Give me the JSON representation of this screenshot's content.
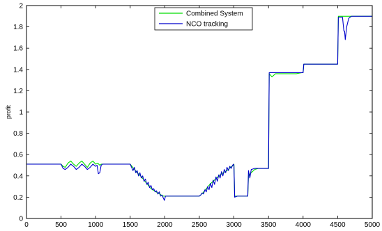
{
  "chart_data": {
    "type": "line",
    "title": "",
    "xlabel": "",
    "ylabel": "profit",
    "xlim": [
      0,
      5000
    ],
    "ylim": [
      0,
      2
    ],
    "grid": false,
    "legend_placement": "top-center",
    "x_ticks": [
      "0",
      "500",
      "1000",
      "1500",
      "2000",
      "2500",
      "3000",
      "3500",
      "4000",
      "4500",
      "5000"
    ],
    "y_ticks": [
      "0",
      "0.2",
      "0.4",
      "0.6",
      "0.8",
      "1",
      "1.2",
      "1.4",
      "1.6",
      "1.8",
      "2"
    ],
    "series": [
      {
        "name": "Combined System",
        "color": "#00dd00",
        "x": [
          0,
          500,
          530,
          560,
          600,
          640,
          680,
          720,
          760,
          800,
          840,
          880,
          920,
          960,
          1000,
          1030,
          1060,
          1080,
          1100,
          1500,
          1550,
          1600,
          1650,
          1700,
          1750,
          1800,
          1850,
          1900,
          1950,
          1980,
          2000,
          2020,
          2500,
          2550,
          2600,
          2650,
          2700,
          2750,
          2800,
          2850,
          2900,
          2950,
          2990,
          3000,
          3010,
          3050,
          3100,
          3150,
          3200,
          3210,
          3250,
          3300,
          3350,
          3400,
          3450,
          3490,
          3500,
          3510,
          3550,
          3600,
          3700,
          3800,
          3900,
          3990,
          4000,
          4010,
          4100,
          4200,
          4300,
          4400,
          4490,
          4500,
          4510,
          4550,
          4590,
          4600,
          4620,
          4650,
          4700,
          5000
        ],
        "y": [
          0.51,
          0.51,
          0.49,
          0.48,
          0.52,
          0.54,
          0.51,
          0.49,
          0.52,
          0.54,
          0.51,
          0.48,
          0.52,
          0.54,
          0.51,
          0.52,
          0.5,
          0.51,
          0.51,
          0.51,
          0.47,
          0.43,
          0.4,
          0.36,
          0.32,
          0.28,
          0.26,
          0.24,
          0.22,
          0.21,
          0.21,
          0.21,
          0.21,
          0.24,
          0.28,
          0.32,
          0.35,
          0.38,
          0.41,
          0.43,
          0.45,
          0.48,
          0.5,
          0.51,
          0.21,
          0.21,
          0.21,
          0.21,
          0.21,
          0.4,
          0.43,
          0.46,
          0.47,
          0.47,
          0.47,
          0.47,
          0.47,
          1.36,
          1.33,
          1.36,
          1.36,
          1.36,
          1.36,
          1.37,
          1.37,
          1.45,
          1.45,
          1.45,
          1.45,
          1.45,
          1.45,
          1.45,
          1.9,
          1.9,
          1.9,
          1.9,
          1.9,
          1.9,
          1.9,
          1.9
        ]
      },
      {
        "name": "NCO tracking",
        "color": "#0000cc",
        "x": [
          0,
          500,
          530,
          560,
          600,
          640,
          680,
          720,
          760,
          800,
          840,
          880,
          920,
          960,
          1000,
          1020,
          1040,
          1060,
          1080,
          1100,
          1500,
          1520,
          1540,
          1560,
          1580,
          1600,
          1620,
          1640,
          1660,
          1680,
          1700,
          1720,
          1740,
          1760,
          1780,
          1800,
          1820,
          1840,
          1860,
          1880,
          1900,
          1920,
          1940,
          1960,
          1980,
          1995,
          2010,
          2020,
          2500,
          2520,
          2540,
          2560,
          2580,
          2600,
          2620,
          2640,
          2660,
          2680,
          2700,
          2720,
          2740,
          2760,
          2780,
          2800,
          2820,
          2840,
          2860,
          2880,
          2900,
          2920,
          2940,
          2960,
          2980,
          2995,
          3000,
          3010,
          3050,
          3100,
          3150,
          3200,
          3210,
          3230,
          3250,
          3300,
          3350,
          3400,
          3450,
          3490,
          3500,
          3510,
          3600,
          3700,
          3800,
          3900,
          3990,
          4000,
          4010,
          4100,
          4200,
          4300,
          4400,
          4490,
          4500,
          4510,
          4540,
          4570,
          4590,
          4600,
          4610,
          4630,
          4660,
          4700,
          5000
        ],
        "y": [
          0.51,
          0.51,
          0.47,
          0.46,
          0.48,
          0.51,
          0.49,
          0.46,
          0.48,
          0.51,
          0.49,
          0.46,
          0.48,
          0.51,
          0.49,
          0.5,
          0.42,
          0.43,
          0.5,
          0.51,
          0.51,
          0.48,
          0.45,
          0.48,
          0.43,
          0.45,
          0.4,
          0.43,
          0.38,
          0.4,
          0.35,
          0.37,
          0.32,
          0.34,
          0.29,
          0.31,
          0.27,
          0.28,
          0.25,
          0.26,
          0.23,
          0.25,
          0.21,
          0.22,
          0.19,
          0.17,
          0.21,
          0.21,
          0.21,
          0.22,
          0.24,
          0.23,
          0.27,
          0.25,
          0.3,
          0.27,
          0.33,
          0.29,
          0.36,
          0.32,
          0.39,
          0.35,
          0.41,
          0.38,
          0.44,
          0.4,
          0.46,
          0.43,
          0.48,
          0.45,
          0.49,
          0.47,
          0.5,
          0.51,
          0.5,
          0.2,
          0.21,
          0.21,
          0.21,
          0.21,
          0.45,
          0.38,
          0.46,
          0.47,
          0.47,
          0.47,
          0.47,
          0.47,
          0.47,
          1.37,
          1.37,
          1.37,
          1.37,
          1.37,
          1.37,
          1.37,
          1.45,
          1.45,
          1.45,
          1.45,
          1.45,
          1.45,
          1.45,
          1.89,
          1.89,
          1.89,
          1.76,
          1.76,
          1.68,
          1.8,
          1.88,
          1.9,
          1.9
        ]
      }
    ]
  }
}
